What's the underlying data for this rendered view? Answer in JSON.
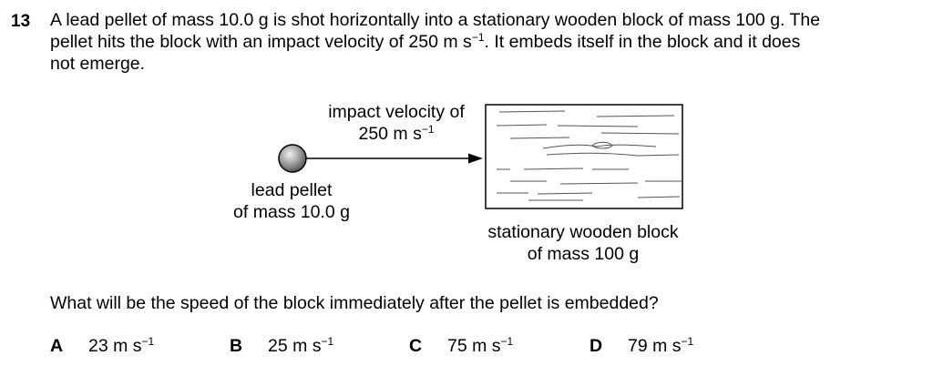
{
  "question": {
    "number": "13",
    "stem": {
      "line1": "A lead pellet of mass 10.0 g is shot horizontally into a stationary wooden block of mass 100 g. The",
      "line2_pre": "pellet hits the block with an impact velocity of 250 m s",
      "line2_exp": "−1",
      "line2_post": ". It embeds itself in the block and it does",
      "line3": "not emerge."
    },
    "diagram": {
      "velocity_label_line1": "impact velocity of",
      "velocity_label_line2": "250 m s",
      "velocity_label_exp": "−1",
      "pellet_label_line1": "lead pellet",
      "pellet_label_line2": "of mass 10.0 g",
      "block_label_line1": "stationary wooden block",
      "block_label_line2": "of mass 100 g"
    },
    "prompt": "What will be the speed of the block immediately after the pellet is embedded?",
    "options": [
      {
        "letter": "A",
        "value": "23 m s",
        "exp": "−1"
      },
      {
        "letter": "B",
        "value": "25 m s",
        "exp": "−1"
      },
      {
        "letter": "C",
        "value": "75 m s",
        "exp": "−1"
      },
      {
        "letter": "D",
        "value": "79 m s",
        "exp": "−1"
      }
    ]
  }
}
